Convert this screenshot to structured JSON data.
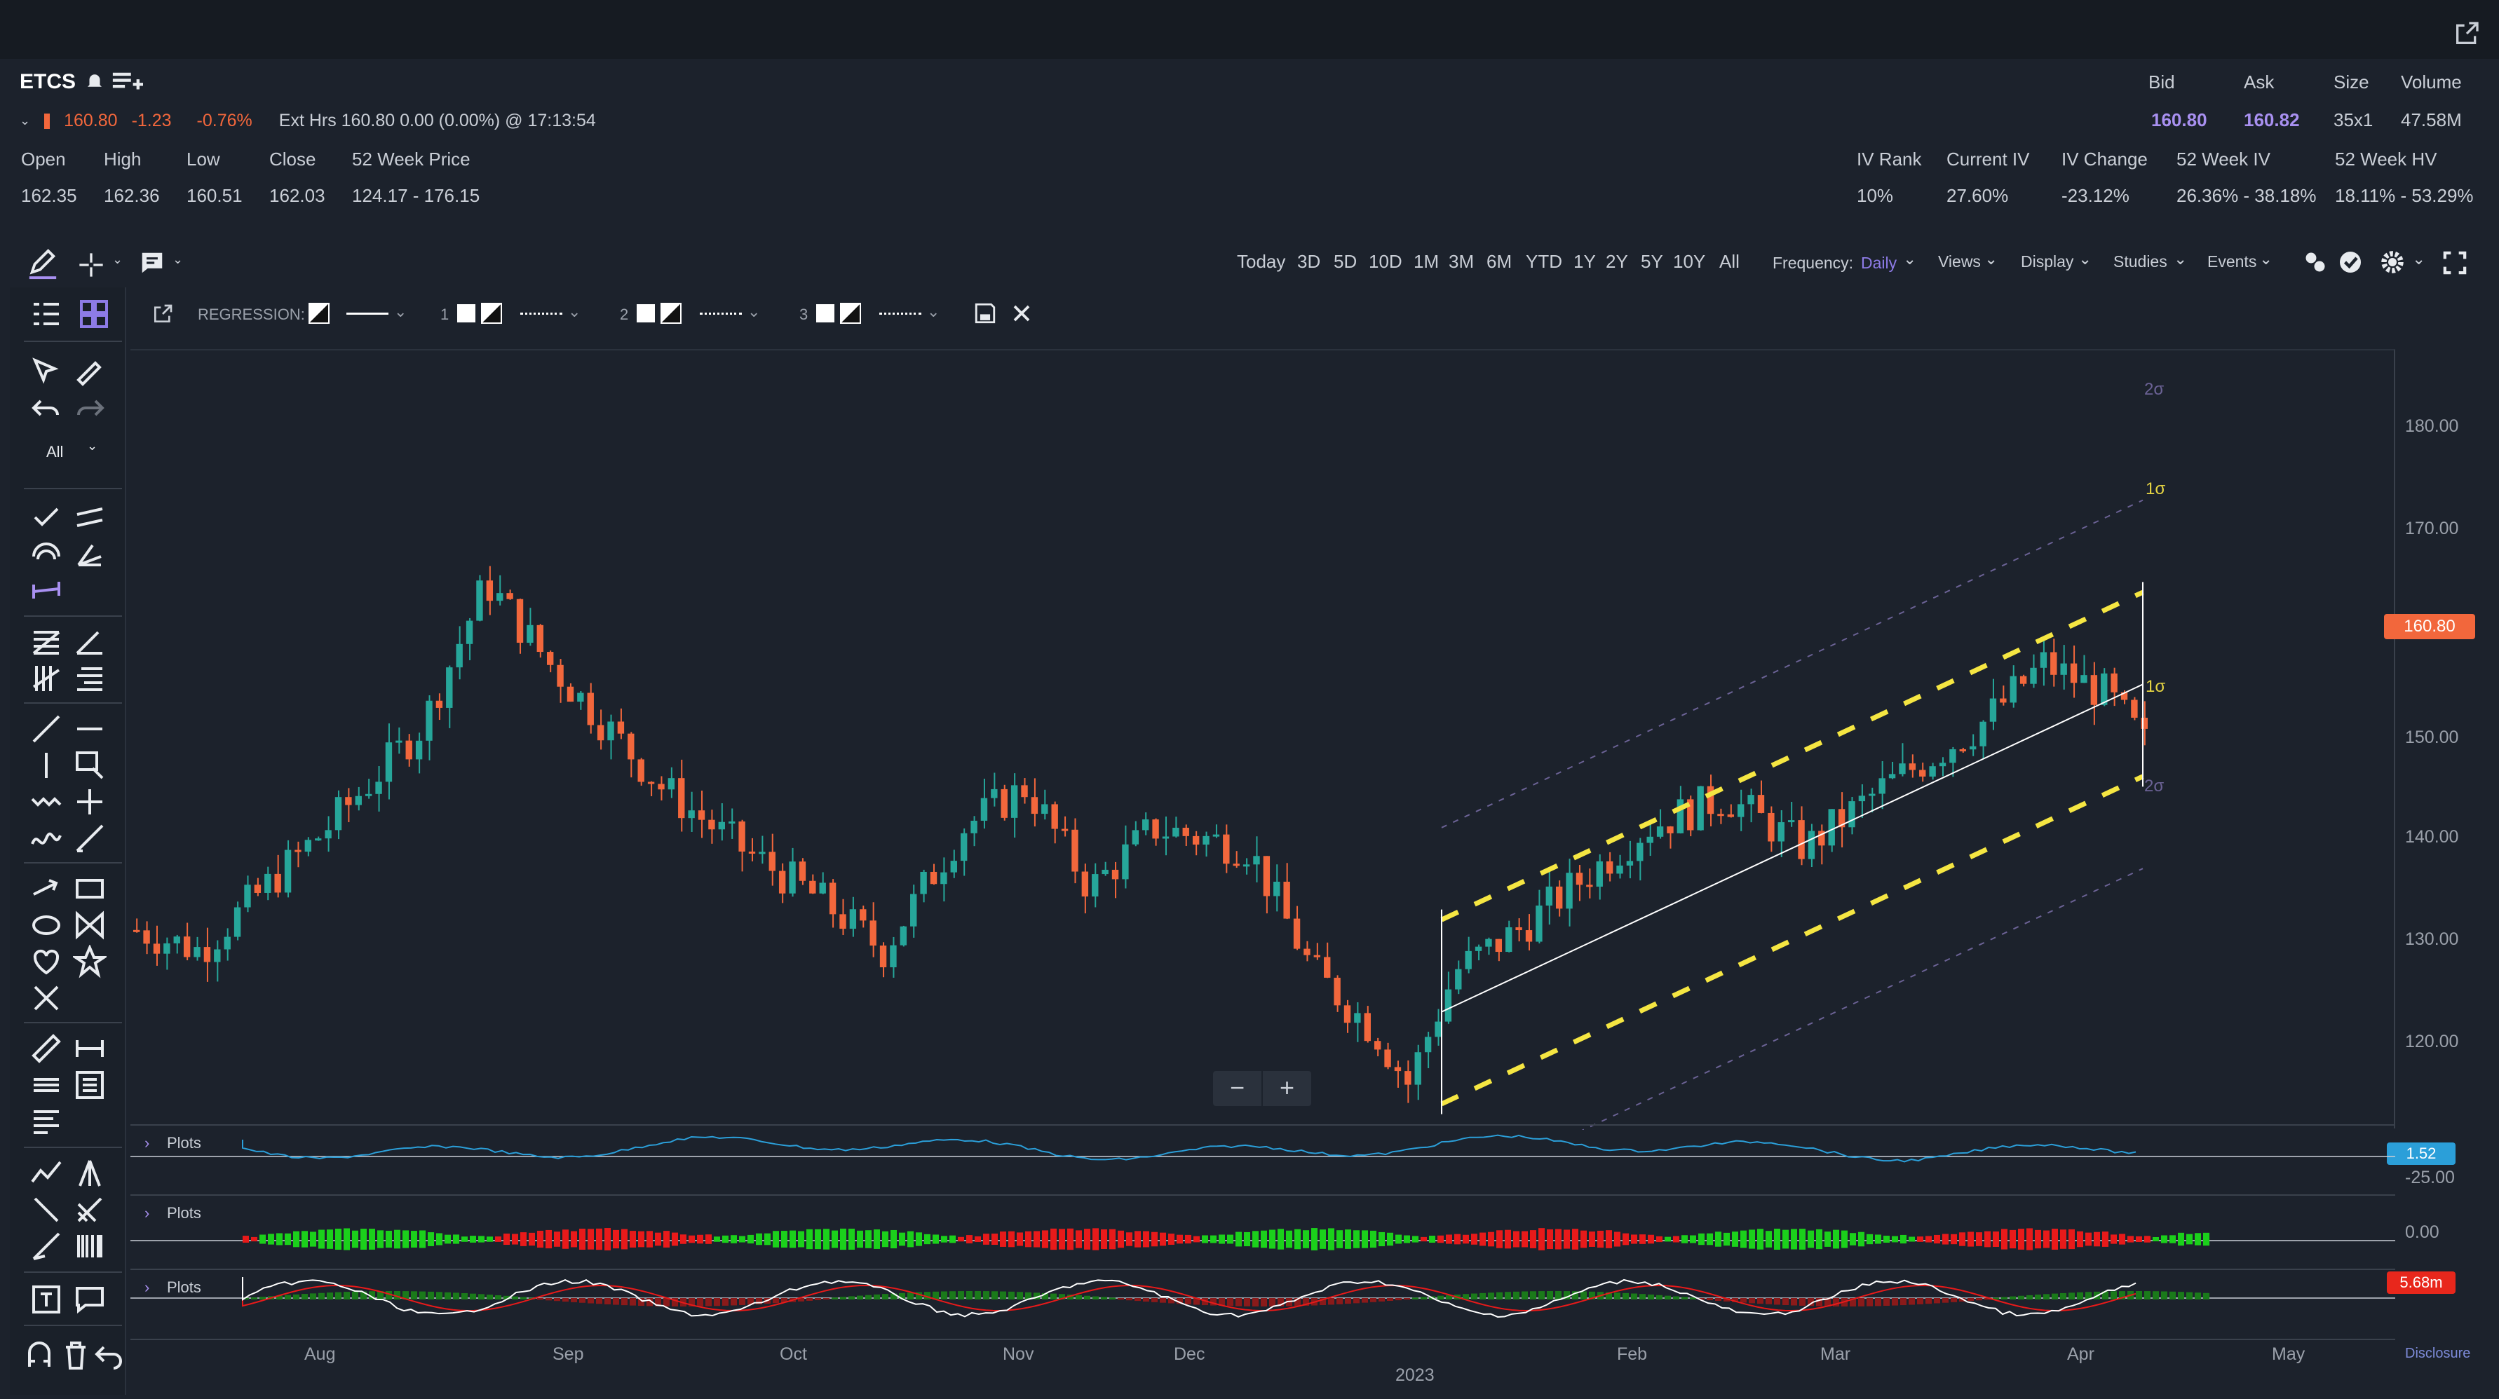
{
  "header": {
    "symbol": "ETCS",
    "last": "160.80",
    "change": "-1.23",
    "change_pct": "-0.76%",
    "ext_hours": "Ext Hrs 160.80 0.00 (0.00%) @ 17:13:54"
  },
  "ohlc": {
    "labels": [
      "Open",
      "High",
      "Low",
      "Close",
      "52 Week Price"
    ],
    "values": [
      "162.35",
      "162.36",
      "160.51",
      "162.03",
      "124.17 - 176.15"
    ]
  },
  "quote": {
    "labels": [
      "Bid",
      "Ask",
      "Size",
      "Volume"
    ],
    "values": [
      "160.80",
      "160.82",
      "35x1",
      "47.58M"
    ]
  },
  "iv": {
    "labels": [
      "IV Rank",
      "Current IV",
      "IV Change",
      "52 Week IV",
      "52 Week HV"
    ],
    "values": [
      "10%",
      "27.60%",
      "-23.12%",
      "26.36% - 38.18%",
      "18.11% - 53.29%"
    ]
  },
  "ranges": [
    "Today",
    "3D",
    "5D",
    "10D",
    "1M",
    "3M",
    "6M",
    "YTD",
    "1Y",
    "2Y",
    "5Y",
    "10Y",
    "All"
  ],
  "menus": {
    "frequency_label": "Frequency:",
    "frequency_value": "Daily",
    "views": "Views",
    "display": "Display",
    "studies": "Studies",
    "events": "Events"
  },
  "regression": {
    "label": "REGRESSION:",
    "levels": [
      "1",
      "2",
      "3"
    ]
  },
  "toolbar": {
    "filter": "All"
  },
  "chart": {
    "y_ticks": [
      "180.00",
      "170.00",
      "160.00",
      "150.00",
      "140.00",
      "130.00",
      "120.00"
    ],
    "price_tag": "160.80",
    "sigma_labels": [
      "2σ",
      "1σ",
      "1σ",
      "2σ"
    ],
    "x_ticks": [
      "Aug",
      "Sep",
      "Oct",
      "Nov",
      "Dec",
      "2023",
      "Feb",
      "Mar",
      "Apr",
      "May"
    ]
  },
  "panels": {
    "label": "Plots",
    "p1_tag": "1.52",
    "p1_tick": "-25.00",
    "p2_tick": "0.00",
    "p3_tag": "5.68m"
  },
  "footer": {
    "disclosure": "Disclosure"
  },
  "colors": {
    "up": "#26a69a",
    "down": "#f2673c",
    "channel1": "#f5e642",
    "accent": "#a890f0"
  }
}
